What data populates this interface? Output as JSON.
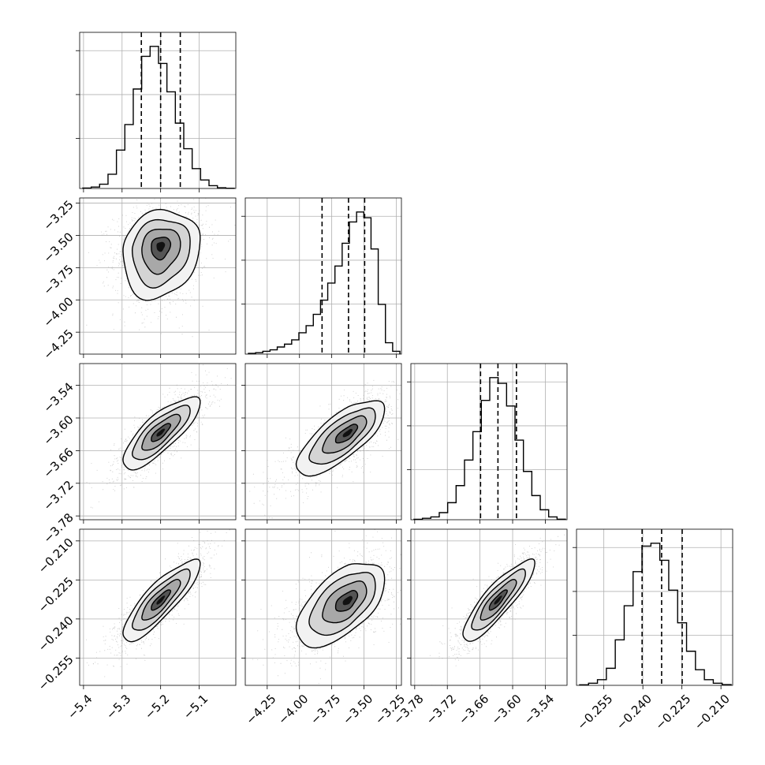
{
  "chart_data": {
    "type": "corner",
    "title": "",
    "grid": true,
    "parameters": [
      {
        "axis_ticks": [
          -5.4,
          -5.3,
          -5.2,
          -5.1
        ],
        "tick_labels": [
          "−5.4",
          "−5.3",
          "−5.2",
          "−5.1"
        ],
        "range": [
          -5.41,
          -5.005
        ],
        "median": -5.2,
        "q16": -5.25,
        "q84": -5.149,
        "hist_counts": [
          0.3,
          1,
          3,
          10,
          27,
          45,
          70,
          93,
          100,
          88,
          68,
          46,
          28,
          14,
          6,
          2,
          0.5,
          0.2
        ]
      },
      {
        "axis_ticks": [
          -4.25,
          -4.0,
          -3.75,
          -3.5,
          -3.25
        ],
        "tick_labels": [
          "−4.25",
          "−4.00",
          "−3.75",
          "−3.50",
          "−3.25"
        ],
        "range": [
          -4.42,
          -3.21
        ],
        "median": -3.62,
        "q16": -3.825,
        "q84": -3.495,
        "hist_counts": [
          0.5,
          1,
          2,
          3,
          5,
          7,
          10,
          15,
          20,
          28,
          38,
          50,
          62,
          78,
          93,
          100,
          96,
          74,
          35,
          8,
          2
        ]
      },
      {
        "axis_ticks": [
          -3.78,
          -3.72,
          -3.66,
          -3.6,
          -3.54
        ],
        "tick_labels": [
          "−3.78",
          "−3.72",
          "−3.66",
          "−3.60",
          "−3.54"
        ],
        "range": [
          -3.787,
          -3.5
        ],
        "median": -3.627,
        "q16": -3.659,
        "q84": -3.593,
        "hist_counts": [
          0.3,
          1,
          2,
          5,
          12,
          24,
          42,
          62,
          84,
          100,
          96,
          80,
          56,
          34,
          17,
          7,
          2,
          0.4
        ]
      },
      {
        "axis_ticks": [
          -0.255,
          -0.24,
          -0.225,
          -0.21
        ],
        "tick_labels": [
          "−0.255",
          "−0.240",
          "−0.225",
          "−0.210"
        ],
        "range": [
          -0.2655,
          -0.2055
        ],
        "median": -0.2328,
        "q16": -0.2403,
        "q84": -0.2249,
        "hist_counts": [
          0.4,
          1.5,
          4,
          12,
          32,
          56,
          80,
          98,
          100,
          88,
          67,
          44,
          24,
          11,
          4,
          1.5,
          0.5
        ]
      }
    ],
    "pairs": [
      {
        "row": 1,
        "col": 0,
        "center": [
          -5.2,
          -3.58
        ],
        "sd": [
          0.05,
          0.16
        ],
        "rho": 0.15,
        "skew_y": -0.6
      },
      {
        "row": 2,
        "col": 0,
        "center": [
          -5.2,
          -3.627
        ],
        "sd": [
          0.05,
          0.033
        ],
        "rho": 0.8
      },
      {
        "row": 2,
        "col": 1,
        "center": [
          -3.62,
          -3.627
        ],
        "sd": [
          0.16,
          0.033
        ],
        "rho": 0.72,
        "skew_x": -0.6
      },
      {
        "row": 3,
        "col": 0,
        "center": [
          -5.2,
          -0.2328
        ],
        "sd": [
          0.05,
          0.0078
        ],
        "rho": 0.85
      },
      {
        "row": 3,
        "col": 1,
        "center": [
          -3.62,
          -0.2328
        ],
        "sd": [
          0.16,
          0.0078
        ],
        "rho": 0.55,
        "skew_x": -0.6
      },
      {
        "row": 3,
        "col": 2,
        "center": [
          -3.627,
          -0.2328
        ],
        "sd": [
          0.033,
          0.0078
        ],
        "rho": 0.87
      }
    ],
    "contour_levels": [
      "0.5-sigma",
      "1-sigma",
      "1.5-sigma",
      "2-sigma"
    ],
    "colors": {
      "line": "#000000",
      "grid": "#b0b0b0",
      "scatter": "#9a9a9a"
    }
  }
}
